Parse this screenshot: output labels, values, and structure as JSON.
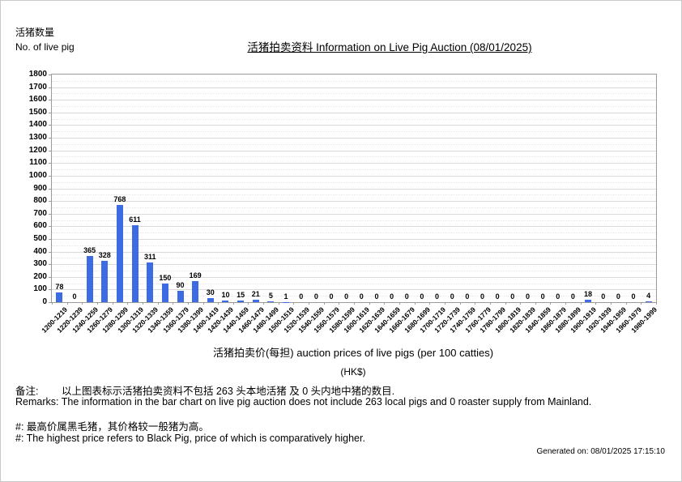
{
  "chart_data": {
    "type": "bar",
    "title": "活猪拍卖资料 Information on Live Pig Auction (08/01/2025)",
    "ylabel_zh": "活猪数量",
    "ylabel_en": "No. of live pig",
    "xlabel": "活猪拍卖价(每担) auction prices of live pigs (per 100 catties)",
    "xlabel_unit": "(HK$)",
    "categories": [
      "1200-1219",
      "1220-1239",
      "1240-1259",
      "1260-1279",
      "1280-1299",
      "1300-1319",
      "1320-1339",
      "1340-1359",
      "1360-1379",
      "1380-1399",
      "1400-1419",
      "1420-1439",
      "1440-1459",
      "1460-1479",
      "1480-1499",
      "1500-1519",
      "1520-1539",
      "1540-1559",
      "1560-1579",
      "1580-1599",
      "1600-1619",
      "1620-1639",
      "1640-1659",
      "1660-1679",
      "1680-1699",
      "1700-1719",
      "1720-1739",
      "1740-1759",
      "1760-1779",
      "1780-1799",
      "1800-1819",
      "1820-1839",
      "1840-1859",
      "1860-1879",
      "1880-1899",
      "1900-1919",
      "1920-1939",
      "1940-1959",
      "1960-1979",
      "1980-1999"
    ],
    "values": [
      78,
      0,
      365,
      328,
      768,
      611,
      311,
      150,
      90,
      169,
      30,
      10,
      15,
      21,
      5,
      1,
      0,
      0,
      0,
      0,
      0,
      0,
      0,
      0,
      0,
      0,
      0,
      0,
      0,
      0,
      0,
      0,
      0,
      0,
      0,
      18,
      0,
      0,
      0,
      4
    ],
    "ylim": [
      0,
      1800
    ],
    "y_tick_step": 100,
    "bar_color": "#3d6be3",
    "grid": "horizontal major solid, minor dotted",
    "legend_position": "none"
  },
  "footer": {
    "remark_zh": "备注:　　 以上图表标示活猪拍卖资料不包括 263 头本地活猪 及 0 头内地中猪的数目.",
    "remark_en": "Remarks: The information in the bar chart on live pig auction does not include 263 local pigs and 0 roaster supply from Mainland.",
    "note_zh": "#: 最高价属黑毛猪，其价格较一般猪为高。",
    "note_en": "#: The highest price refers to Black Pig, price of which is comparatively higher.",
    "generated": "Generated on: 08/01/2025 17:15:10"
  }
}
